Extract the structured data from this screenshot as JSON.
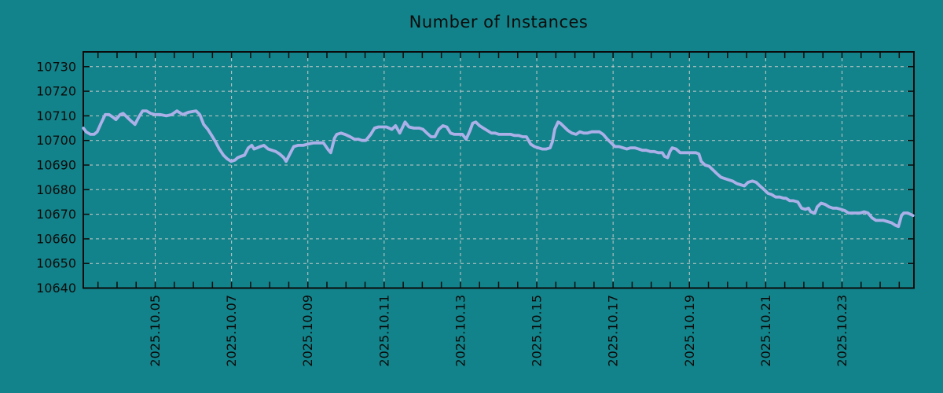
{
  "colors": {
    "background": "#12838a",
    "grid": "#c9c9c9",
    "axis": "#0b0b0b",
    "text": "#0b0b0b",
    "line": "#acb0e8"
  },
  "chart_data": {
    "type": "line",
    "title": "Number of Instances",
    "legend": "none",
    "grid": true,
    "x_axis": {
      "month_prefix": "2025.10",
      "tick_labels": [
        "2025.10.05",
        "2025.10.07",
        "2025.10.09",
        "2025.10.11",
        "2025.10.13",
        "2025.10.15",
        "2025.10.17",
        "2025.10.19",
        "2025.10.21",
        "2025.10.23"
      ],
      "tick_days": [
        5,
        7,
        9,
        11,
        13,
        15,
        17,
        19,
        21,
        23
      ],
      "minor_tick_start": 3.5,
      "minor_tick_end": 24.5,
      "minor_tick_step": 0.5,
      "xlim_days": [
        3.115,
        24.885
      ]
    },
    "y_axis": {
      "ticks": [
        10640,
        10650,
        10660,
        10670,
        10680,
        10690,
        10700,
        10710,
        10720,
        10730
      ],
      "ylim": [
        10640,
        10736
      ]
    },
    "series": [
      {
        "name": "instances",
        "color": "#acb0e8",
        "points": [
          [
            3.12,
            10705
          ],
          [
            3.19,
            10703.5
          ],
          [
            3.3,
            10702.5
          ],
          [
            3.4,
            10702.5
          ],
          [
            3.48,
            10703.5
          ],
          [
            3.58,
            10707
          ],
          [
            3.69,
            10710.5
          ],
          [
            3.79,
            10710.5
          ],
          [
            3.89,
            10709.5
          ],
          [
            3.97,
            10708.5
          ],
          [
            4.08,
            10710.5
          ],
          [
            4.16,
            10711
          ],
          [
            4.26,
            10709.5
          ],
          [
            4.36,
            10708
          ],
          [
            4.47,
            10706.5
          ],
          [
            4.57,
            10709.5
          ],
          [
            4.67,
            10712
          ],
          [
            4.77,
            10712
          ],
          [
            4.88,
            10711
          ],
          [
            5.0,
            10710.5
          ],
          [
            5.14,
            10710.5
          ],
          [
            5.29,
            10710
          ],
          [
            5.43,
            10710.5
          ],
          [
            5.57,
            10712
          ],
          [
            5.72,
            10710.5
          ],
          [
            5.88,
            10711.5
          ],
          [
            6.07,
            10712
          ],
          [
            6.17,
            10710.5
          ],
          [
            6.27,
            10706.5
          ],
          [
            6.38,
            10704.5
          ],
          [
            6.48,
            10702
          ],
          [
            6.58,
            10699.5
          ],
          [
            6.68,
            10696.5
          ],
          [
            6.79,
            10694
          ],
          [
            6.89,
            10692.5
          ],
          [
            6.99,
            10691.5
          ],
          [
            7.09,
            10692
          ],
          [
            7.16,
            10693
          ],
          [
            7.24,
            10693.5
          ],
          [
            7.34,
            10694
          ],
          [
            7.44,
            10697
          ],
          [
            7.53,
            10698
          ],
          [
            7.59,
            10696.5
          ],
          [
            7.67,
            10697
          ],
          [
            7.75,
            10697.5
          ],
          [
            7.85,
            10698
          ],
          [
            7.96,
            10696.5
          ],
          [
            8.06,
            10696
          ],
          [
            8.16,
            10695.5
          ],
          [
            8.26,
            10694.5
          ],
          [
            8.37,
            10693
          ],
          [
            8.43,
            10691.5
          ],
          [
            8.53,
            10694.5
          ],
          [
            8.63,
            10697.5
          ],
          [
            8.74,
            10698
          ],
          [
            8.88,
            10698
          ],
          [
            9.0,
            10698.5
          ],
          [
            9.15,
            10699
          ],
          [
            9.29,
            10699
          ],
          [
            9.41,
            10699
          ],
          [
            9.52,
            10696.5
          ],
          [
            9.6,
            10695
          ],
          [
            9.7,
            10701
          ],
          [
            9.76,
            10702.5
          ],
          [
            9.87,
            10703
          ],
          [
            9.97,
            10702.5
          ],
          [
            10.11,
            10701.5
          ],
          [
            10.22,
            10700.5
          ],
          [
            10.32,
            10700.5
          ],
          [
            10.42,
            10700
          ],
          [
            10.52,
            10700
          ],
          [
            10.65,
            10702.5
          ],
          [
            10.75,
            10705
          ],
          [
            10.85,
            10705.5
          ],
          [
            10.95,
            10705.5
          ],
          [
            11.06,
            10705.5
          ],
          [
            11.2,
            10704.5
          ],
          [
            11.3,
            10706
          ],
          [
            11.41,
            10703
          ],
          [
            11.55,
            10707.5
          ],
          [
            11.65,
            10705.5
          ],
          [
            11.78,
            10705
          ],
          [
            11.92,
            10705
          ],
          [
            12.02,
            10704.5
          ],
          [
            12.12,
            10703
          ],
          [
            12.23,
            10701.5
          ],
          [
            12.33,
            10701.5
          ],
          [
            12.43,
            10704.5
          ],
          [
            12.54,
            10706
          ],
          [
            12.64,
            10705.5
          ],
          [
            12.74,
            10703
          ],
          [
            12.84,
            10702.5
          ],
          [
            12.95,
            10702.5
          ],
          [
            13.05,
            10702.5
          ],
          [
            13.15,
            10700.5
          ],
          [
            13.25,
            10704
          ],
          [
            13.32,
            10707
          ],
          [
            13.4,
            10707.5
          ],
          [
            13.5,
            10706
          ],
          [
            13.6,
            10705
          ],
          [
            13.71,
            10704
          ],
          [
            13.81,
            10703
          ],
          [
            13.91,
            10703
          ],
          [
            14.01,
            10702.5
          ],
          [
            14.12,
            10702.5
          ],
          [
            14.22,
            10702.5
          ],
          [
            14.32,
            10702.5
          ],
          [
            14.42,
            10702
          ],
          [
            14.53,
            10702
          ],
          [
            14.63,
            10701.5
          ],
          [
            14.73,
            10701.5
          ],
          [
            14.84,
            10698.5
          ],
          [
            14.94,
            10697.5
          ],
          [
            15.04,
            10697
          ],
          [
            15.14,
            10696.5
          ],
          [
            15.25,
            10696.5
          ],
          [
            15.35,
            10697
          ],
          [
            15.41,
            10699.5
          ],
          [
            15.47,
            10704.5
          ],
          [
            15.56,
            10707.5
          ],
          [
            15.62,
            10707
          ],
          [
            15.72,
            10705.5
          ],
          [
            15.82,
            10704
          ],
          [
            15.92,
            10703
          ],
          [
            16.03,
            10702.5
          ],
          [
            16.13,
            10703.5
          ],
          [
            16.23,
            10703
          ],
          [
            16.33,
            10703
          ],
          [
            16.44,
            10703.5
          ],
          [
            16.54,
            10703.5
          ],
          [
            16.64,
            10703.5
          ],
          [
            16.74,
            10702.5
          ],
          [
            16.85,
            10700.5
          ],
          [
            16.95,
            10699
          ],
          [
            17.05,
            10697.5
          ],
          [
            17.16,
            10697.5
          ],
          [
            17.26,
            10697
          ],
          [
            17.36,
            10696.5
          ],
          [
            17.46,
            10697
          ],
          [
            17.57,
            10697
          ],
          [
            17.67,
            10696.5
          ],
          [
            17.77,
            10696
          ],
          [
            17.87,
            10696
          ],
          [
            17.98,
            10695.5
          ],
          [
            18.08,
            10695.5
          ],
          [
            18.18,
            10695
          ],
          [
            18.29,
            10695
          ],
          [
            18.35,
            10693.5
          ],
          [
            18.43,
            10693
          ],
          [
            18.49,
            10695.5
          ],
          [
            18.55,
            10697
          ],
          [
            18.65,
            10696.5
          ],
          [
            18.76,
            10695
          ],
          [
            18.86,
            10695
          ],
          [
            18.96,
            10695
          ],
          [
            19.07,
            10695
          ],
          [
            19.17,
            10695
          ],
          [
            19.25,
            10694.5
          ],
          [
            19.31,
            10691.5
          ],
          [
            19.41,
            10690
          ],
          [
            19.52,
            10689.5
          ],
          [
            19.62,
            10688
          ],
          [
            19.72,
            10686.5
          ],
          [
            19.83,
            10685
          ],
          [
            19.93,
            10684.5
          ],
          [
            20.03,
            10684
          ],
          [
            20.13,
            10683.5
          ],
          [
            20.24,
            10682.5
          ],
          [
            20.34,
            10682
          ],
          [
            20.44,
            10681.5
          ],
          [
            20.54,
            10683
          ],
          [
            20.65,
            10683.5
          ],
          [
            20.75,
            10683
          ],
          [
            20.85,
            10681.5
          ],
          [
            20.96,
            10680
          ],
          [
            21.06,
            10678.5
          ],
          [
            21.16,
            10678
          ],
          [
            21.26,
            10677
          ],
          [
            21.37,
            10677
          ],
          [
            21.47,
            10676.5
          ],
          [
            21.53,
            10676.5
          ],
          [
            21.63,
            10675.5
          ],
          [
            21.73,
            10675.5
          ],
          [
            21.84,
            10675
          ],
          [
            21.94,
            10672.5
          ],
          [
            22.04,
            10672
          ],
          [
            22.12,
            10672.5
          ],
          [
            22.18,
            10671
          ],
          [
            22.29,
            10670.5
          ],
          [
            22.35,
            10673
          ],
          [
            22.45,
            10674.5
          ],
          [
            22.56,
            10674
          ],
          [
            22.66,
            10673
          ],
          [
            22.76,
            10672.5
          ],
          [
            22.86,
            10672.5
          ],
          [
            22.97,
            10672
          ],
          [
            23.07,
            10671.5
          ],
          [
            23.17,
            10670.5
          ],
          [
            23.27,
            10670.5
          ],
          [
            23.38,
            10670.5
          ],
          [
            23.48,
            10670.5
          ],
          [
            23.58,
            10671
          ],
          [
            23.68,
            10670.5
          ],
          [
            23.79,
            10668.5
          ],
          [
            23.89,
            10667.5
          ],
          [
            23.99,
            10667.5
          ],
          [
            24.09,
            10667.5
          ],
          [
            24.2,
            10667
          ],
          [
            24.3,
            10666.5
          ],
          [
            24.4,
            10665.5
          ],
          [
            24.48,
            10665
          ],
          [
            24.56,
            10669.5
          ],
          [
            24.62,
            10670.5
          ],
          [
            24.72,
            10670.5
          ],
          [
            24.86,
            10669.5
          ]
        ]
      }
    ]
  }
}
